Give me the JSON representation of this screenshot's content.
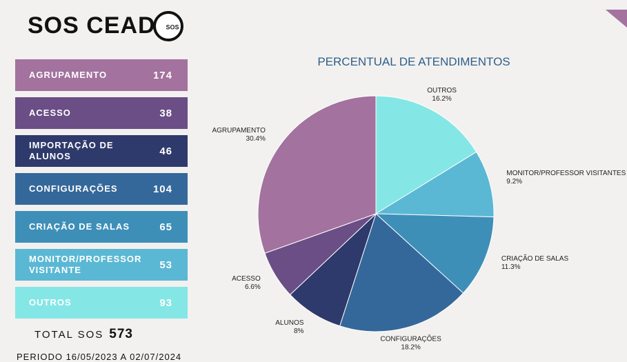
{
  "header": {
    "title": "SOS CEAD",
    "logo_text": "SOS"
  },
  "cards": [
    {
      "label": "AGRUPAMENTO",
      "value": 174,
      "color": "#a3729e"
    },
    {
      "label": "ACESSO",
      "value": 38,
      "color": "#6b4e86"
    },
    {
      "label": "IMPORTAÇÃO DE ALUNOS",
      "value": 46,
      "color": "#2e3a6b"
    },
    {
      "label": "CONFIGURAÇÕES",
      "value": 104,
      "color": "#35689a"
    },
    {
      "label": "CRIAÇÃO DE SALAS",
      "value": 65,
      "color": "#3e8fb8"
    },
    {
      "label": "MONITOR/PROFESSOR VISITANTE",
      "value": 53,
      "color": "#5bb8d4"
    },
    {
      "label": "OUTROS",
      "value": 93,
      "color": "#85e6e6"
    }
  ],
  "total": {
    "label": "TOTAL SOS",
    "value": 573
  },
  "period": "PERIODO 16/05/2023 A 02/07/2024",
  "chart_data": {
    "type": "pie",
    "title": "PERCENTUAL DE ATENDIMENTOS",
    "categories": [
      "OUTROS",
      "MONITOR/PROFESSOR VISITANTES",
      "CRIAÇÃO DE SALAS",
      "CONFIGURAÇÕES",
      "ALUNOS",
      "ACESSO",
      "AGRUPAMENTO"
    ],
    "values": [
      16.2,
      9.2,
      11.3,
      18.2,
      8,
      6.6,
      30.4
    ],
    "value_labels": [
      "16.2%",
      "9.2%",
      "11.3%",
      "18.2%",
      "8%",
      "6.6%",
      "30.4%"
    ],
    "colors": [
      "#85e6e6",
      "#5bb8d4",
      "#3e8fb8",
      "#35689a",
      "#2e3a6b",
      "#6b4e86",
      "#a3729e"
    ]
  }
}
